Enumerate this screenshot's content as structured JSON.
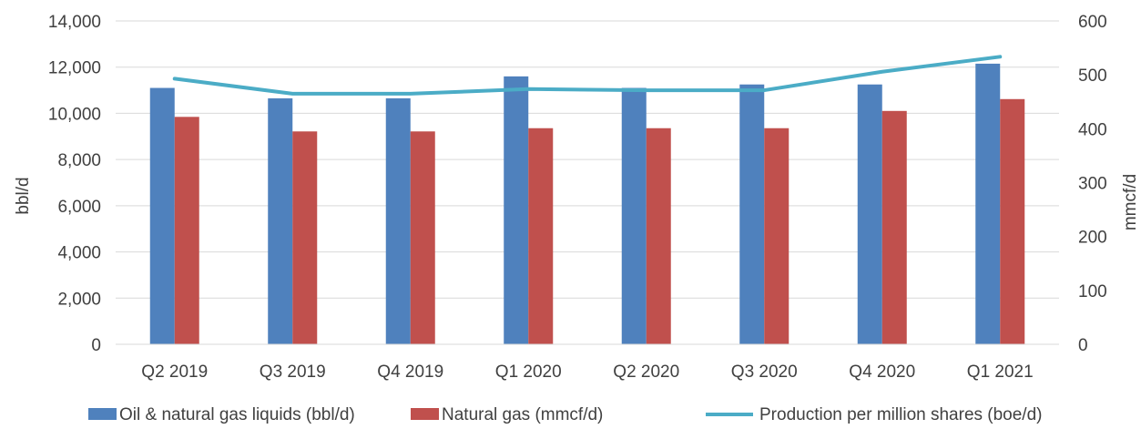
{
  "chart_data": {
    "type": "bar",
    "categories": [
      "Q2 2019",
      "Q3 2019",
      "Q4 2019",
      "Q1 2020",
      "Q2 2020",
      "Q3 2020",
      "Q4 2020",
      "Q1 2021"
    ],
    "series": [
      {
        "name": "Oil & natural gas liquids (bbl/d)",
        "kind": "bar",
        "axis": "left",
        "color": "#4F81BD",
        "values": [
          11100,
          10650,
          10650,
          11600,
          11100,
          11250,
          11250,
          12150
        ]
      },
      {
        "name": "Natural gas (mmcf/d)",
        "kind": "bar",
        "axis": "right",
        "color": "#C0504D",
        "values": [
          422,
          395,
          395,
          401,
          401,
          401,
          433,
          455
        ]
      },
      {
        "name": "Production per million shares (boe/d)",
        "kind": "line",
        "axis": "left",
        "color": "#4BACC6",
        "values": [
          11500,
          10850,
          10850,
          11050,
          11000,
          11000,
          11800,
          12450
        ]
      }
    ],
    "ylabel": "bbl/d",
    "y2label": "mmcf/d",
    "ylim": [
      0,
      14000
    ],
    "y2lim": [
      0,
      600
    ],
    "yticks": [
      "0",
      "2,000",
      "4,000",
      "6,000",
      "8,000",
      "10,000",
      "12,000",
      "14,000"
    ],
    "y2ticks": [
      "0",
      "100",
      "200",
      "300",
      "400",
      "500",
      "600"
    ],
    "grid": true,
    "legend_position": "bottom"
  }
}
